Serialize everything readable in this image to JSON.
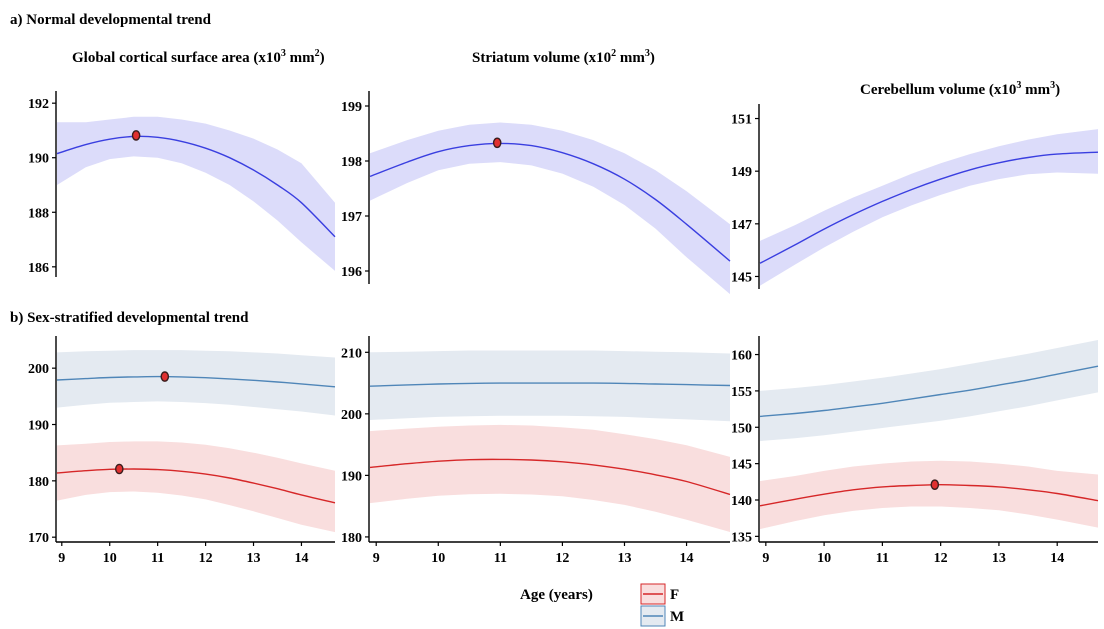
{
  "figure": {
    "section_a": "a) Normal developmental trend",
    "section_b": "b) Sex-stratified developmental trend",
    "x_axis_title": "Age (years)",
    "legend": [
      {
        "label": "F",
        "color": "#d62728"
      },
      {
        "label": "M",
        "color": "#4f86b8"
      }
    ],
    "colors": {
      "overall_line": "#3a3fe0",
      "overall_band": "#dcdcfa",
      "female_band": "#f9dede",
      "male_band": "#e4eaf1",
      "marker_fill": "#e03030",
      "marker_stroke": "#3a1d1d"
    }
  },
  "chart_data": [
    {
      "type": "line",
      "panel": "a1",
      "title_main": "Global cortical surface area (x10",
      "title_sup": "3",
      "title_end": " mm",
      "title_sup2": "2",
      "title_close": ")",
      "xlim": [
        8.9,
        14.7
      ],
      "ylim": [
        185.7,
        192.3
      ],
      "yticks": [
        186,
        188,
        190,
        192
      ],
      "x": [
        8.9,
        9.5,
        10,
        10.5,
        11,
        11.5,
        12,
        12.5,
        13,
        13.5,
        14,
        14.7
      ],
      "series": [
        {
          "name": "",
          "color": "overall",
          "y": [
            190.15,
            190.48,
            190.68,
            190.78,
            190.75,
            190.6,
            190.35,
            190.0,
            189.55,
            189.0,
            188.35,
            187.1
          ],
          "lower": [
            189.0,
            189.65,
            189.95,
            190.05,
            190.0,
            189.8,
            189.45,
            189.0,
            188.4,
            187.7,
            186.9,
            185.85
          ],
          "upper": [
            191.3,
            191.3,
            191.4,
            191.5,
            191.5,
            191.4,
            191.25,
            191.0,
            190.7,
            190.3,
            189.8,
            188.35
          ]
        }
      ],
      "markers": [
        {
          "x": 10.55,
          "y": 190.82
        }
      ]
    },
    {
      "type": "line",
      "panel": "a2",
      "title_main": "Striatum volume (x10",
      "title_sup": "2",
      "title_end": " mm",
      "title_sup2": "3",
      "title_close": ")",
      "xlim": [
        8.9,
        14.7
      ],
      "ylim": [
        195.8,
        199.2
      ],
      "yticks": [
        196,
        197,
        198,
        199
      ],
      "x": [
        8.9,
        9.5,
        10,
        10.5,
        11,
        11.5,
        12,
        12.5,
        13,
        13.5,
        14,
        14.7
      ],
      "series": [
        {
          "name": "",
          "color": "overall",
          "y": [
            197.72,
            197.98,
            198.17,
            198.28,
            198.32,
            198.28,
            198.15,
            197.95,
            197.67,
            197.3,
            196.85,
            196.18
          ],
          "lower": [
            197.28,
            197.6,
            197.83,
            197.95,
            197.98,
            197.92,
            197.77,
            197.53,
            197.2,
            196.77,
            196.25,
            195.58
          ],
          "upper": [
            198.14,
            198.38,
            198.55,
            198.66,
            198.7,
            198.66,
            198.55,
            198.38,
            198.14,
            197.83,
            197.45,
            196.85
          ]
        }
      ],
      "markers": [
        {
          "x": 10.95,
          "y": 198.33
        }
      ]
    },
    {
      "type": "line",
      "panel": "a3",
      "title_main": "Cerebellum volume (x10",
      "title_sup": "3",
      "title_end": " mm",
      "title_sup2": "3",
      "title_close": ")",
      "xlim": [
        8.9,
        14.7
      ],
      "ylim": [
        144.6,
        151.4
      ],
      "yticks": [
        145,
        147,
        149,
        151
      ],
      "x": [
        8.9,
        9.5,
        10,
        10.5,
        11,
        11.5,
        12,
        12.5,
        13,
        13.5,
        14,
        14.7
      ],
      "series": [
        {
          "name": "",
          "color": "overall",
          "y": [
            145.5,
            146.2,
            146.8,
            147.35,
            147.85,
            148.3,
            148.7,
            149.05,
            149.32,
            149.52,
            149.65,
            149.72
          ],
          "lower": [
            144.65,
            145.45,
            146.1,
            146.7,
            147.25,
            147.7,
            148.1,
            148.45,
            148.7,
            148.88,
            148.95,
            148.9
          ],
          "upper": [
            146.35,
            146.95,
            147.5,
            148.0,
            148.45,
            148.9,
            149.3,
            149.65,
            149.95,
            150.2,
            150.4,
            150.6
          ]
        }
      ],
      "markers": []
    },
    {
      "type": "line",
      "panel": "b1",
      "xlim": [
        8.9,
        14.7
      ],
      "ylim": [
        169.5,
        205
      ],
      "yticks": [
        170,
        180,
        190,
        200
      ],
      "xticks": [
        9,
        10,
        11,
        12,
        13,
        14
      ],
      "x": [
        8.9,
        9.5,
        10,
        10.5,
        11,
        11.5,
        12,
        12.5,
        13,
        13.5,
        14,
        14.7
      ],
      "series": [
        {
          "name": "M",
          "color": "male",
          "y": [
            197.9,
            198.15,
            198.35,
            198.45,
            198.5,
            198.45,
            198.3,
            198.1,
            197.85,
            197.55,
            197.2,
            196.7
          ],
          "lower": [
            193.0,
            193.5,
            193.85,
            194.0,
            194.1,
            194.0,
            193.8,
            193.5,
            193.1,
            192.7,
            192.3,
            191.6
          ],
          "upper": [
            202.8,
            203.0,
            203.1,
            203.2,
            203.2,
            203.2,
            203.1,
            203.0,
            202.8,
            202.6,
            202.3,
            201.9
          ]
        },
        {
          "name": "F",
          "color": "female",
          "y": [
            181.4,
            181.8,
            182.05,
            182.1,
            182.0,
            181.7,
            181.2,
            180.5,
            179.6,
            178.6,
            177.5,
            176.1
          ],
          "lower": [
            176.5,
            177.5,
            178.0,
            178.1,
            177.9,
            177.4,
            176.7,
            175.7,
            174.6,
            173.4,
            172.2,
            170.9
          ],
          "upper": [
            186.3,
            186.6,
            186.9,
            187.0,
            187.0,
            186.8,
            186.4,
            185.8,
            185.0,
            184.1,
            183.1,
            181.8
          ]
        }
      ],
      "markers": [
        {
          "x": 10.2,
          "y": 182.1
        },
        {
          "x": 11.15,
          "y": 198.5
        }
      ]
    },
    {
      "type": "line",
      "panel": "b2",
      "xlim": [
        8.9,
        14.7
      ],
      "ylim": [
        179.5,
        212
      ],
      "yticks": [
        180,
        190,
        200,
        210
      ],
      "xticks": [
        9,
        10,
        11,
        12,
        13,
        14
      ],
      "x": [
        8.9,
        9.5,
        10,
        10.5,
        11,
        11.5,
        12,
        12.5,
        13,
        13.5,
        14,
        14.7
      ],
      "series": [
        {
          "name": "M",
          "color": "male",
          "y": [
            204.5,
            204.7,
            204.85,
            204.95,
            205.0,
            205.0,
            205.0,
            205.0,
            204.95,
            204.85,
            204.75,
            204.6
          ],
          "lower": [
            199.0,
            199.3,
            199.5,
            199.6,
            199.7,
            199.7,
            199.7,
            199.6,
            199.5,
            199.3,
            199.1,
            198.8
          ],
          "upper": [
            210.0,
            210.1,
            210.2,
            210.3,
            210.3,
            210.3,
            210.3,
            210.3,
            210.2,
            210.1,
            210.0,
            209.8
          ]
        },
        {
          "name": "F",
          "color": "female",
          "y": [
            191.3,
            191.9,
            192.3,
            192.55,
            192.6,
            192.5,
            192.2,
            191.7,
            191.0,
            190.1,
            189.0,
            186.9
          ],
          "lower": [
            185.5,
            186.2,
            186.7,
            186.95,
            187.0,
            186.9,
            186.6,
            186.0,
            185.2,
            184.1,
            182.8,
            180.8
          ],
          "upper": [
            197.2,
            197.6,
            197.9,
            198.1,
            198.2,
            198.1,
            197.8,
            197.4,
            196.7,
            195.9,
            194.9,
            193.0
          ]
        }
      ],
      "markers": []
    },
    {
      "type": "line",
      "panel": "b3",
      "xlim": [
        8.9,
        14.7
      ],
      "ylim": [
        134.5,
        162
      ],
      "yticks": [
        135,
        140,
        145,
        150,
        155,
        160
      ],
      "xticks": [
        9,
        10,
        11,
        12,
        13,
        14
      ],
      "x": [
        8.9,
        9.5,
        10,
        10.5,
        11,
        11.5,
        12,
        12.5,
        13,
        13.5,
        14,
        14.7
      ],
      "series": [
        {
          "name": "M",
          "color": "male",
          "y": [
            151.5,
            151.9,
            152.3,
            152.8,
            153.3,
            153.9,
            154.5,
            155.1,
            155.8,
            156.5,
            157.3,
            158.4
          ],
          "lower": [
            148.1,
            148.5,
            148.9,
            149.4,
            149.9,
            150.4,
            150.9,
            151.5,
            152.2,
            152.9,
            153.7,
            154.8
          ],
          "upper": [
            155.0,
            155.4,
            155.8,
            156.3,
            156.8,
            157.4,
            158.0,
            158.7,
            159.4,
            160.1,
            160.9,
            162.0
          ]
        },
        {
          "name": "F",
          "color": "female",
          "y": [
            139.2,
            140.1,
            140.8,
            141.4,
            141.8,
            142.0,
            142.1,
            142.0,
            141.8,
            141.4,
            140.9,
            139.9
          ],
          "lower": [
            136.0,
            137.1,
            137.9,
            138.5,
            138.9,
            139.1,
            139.1,
            138.9,
            138.6,
            138.0,
            137.3,
            136.2
          ],
          "upper": [
            142.6,
            143.3,
            144.0,
            144.6,
            145.0,
            145.3,
            145.4,
            145.3,
            145.0,
            144.6,
            144.0,
            143.5
          ]
        }
      ],
      "markers": [
        {
          "x": 11.9,
          "y": 142.1
        }
      ]
    }
  ]
}
